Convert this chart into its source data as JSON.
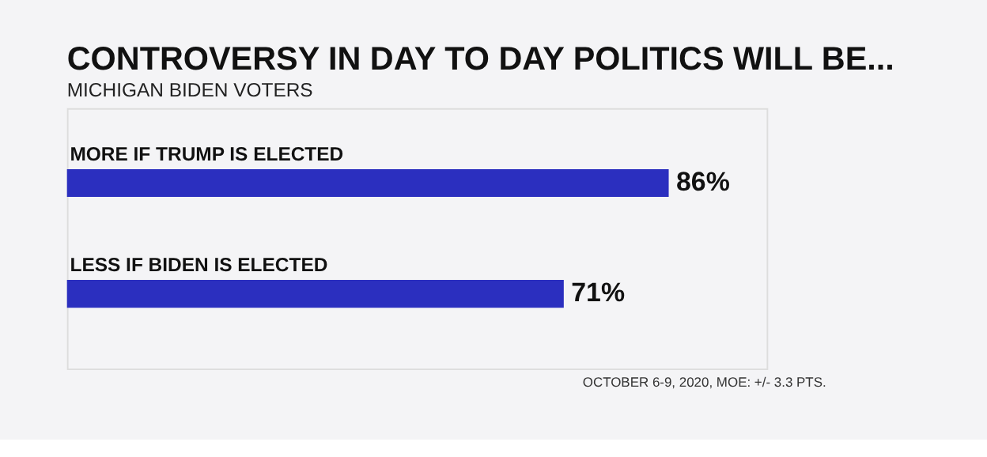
{
  "chart_data": {
    "type": "bar",
    "orientation": "horizontal",
    "title": "CONTROVERSY IN DAY TO DAY POLITICS WILL BE...",
    "subtitle": "MICHIGAN BIDEN VOTERS",
    "categories": [
      "MORE IF TRUMP IS ELECTED",
      "LESS IF BIDEN IS ELECTED"
    ],
    "values": [
      86,
      71
    ],
    "value_labels": [
      "86%",
      "71%"
    ],
    "color": "#2b2fbf",
    "xlim": [
      0,
      100
    ],
    "annotations": [
      "OCTOBER 6-9, 2020, MOE: +/- 3.3 PTS."
    ]
  }
}
